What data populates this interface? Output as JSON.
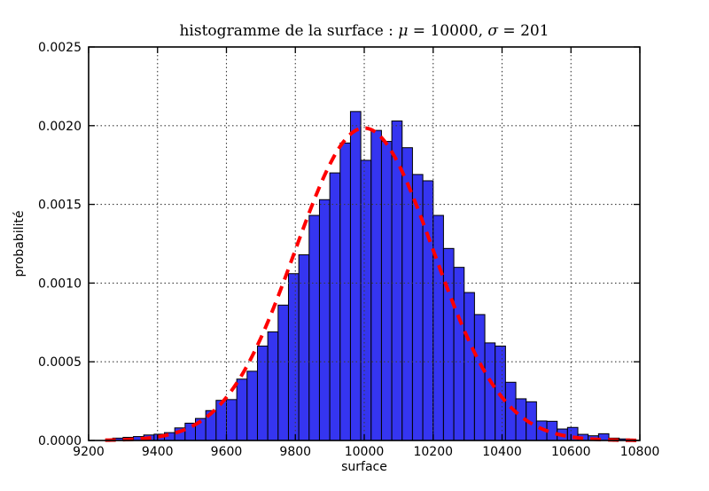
{
  "figure": {
    "title": "histogramme de la surface : μ = 10000, σ = 201"
  },
  "chart_data": {
    "type": "bar",
    "subtype": "histogram",
    "title": "histogramme de la surface : μ = 10000, σ = 201",
    "xlabel": "surface",
    "ylabel": "probabilité",
    "xlim": [
      9200,
      10800
    ],
    "ylim": [
      0.0,
      0.0025
    ],
    "x_ticks": [
      9200,
      9400,
      9600,
      9800,
      10000,
      10200,
      10400,
      10600,
      10800
    ],
    "x_tick_labels": [
      "9200",
      "9400",
      "9600",
      "9800",
      "10000",
      "10200",
      "10400",
      "10600",
      "10800"
    ],
    "y_ticks": [
      0.0,
      0.0005,
      0.001,
      0.0015,
      0.002,
      0.0025
    ],
    "y_tick_labels": [
      "0.0000",
      "0.0005",
      "0.0010",
      "0.0015",
      "0.0020",
      "0.0025"
    ],
    "grid": true,
    "grid_style": "dotted",
    "legend": null,
    "histogram": {
      "bin_start": 9270,
      "bin_width": 30,
      "densities": [
        1.5e-05,
        2e-05,
        2.5e-05,
        3.5e-05,
        4e-05,
        5e-05,
        8e-05,
        0.00011,
        0.00014,
        0.00019,
        0.000255,
        0.00026,
        0.00039,
        0.00044,
        0.0006,
        0.00069,
        0.00086,
        0.00106,
        0.00118,
        0.00143,
        0.00153,
        0.0017,
        0.00189,
        0.00209,
        0.00178,
        0.00197,
        0.0019,
        0.00203,
        0.00186,
        0.00169,
        0.00165,
        0.00143,
        0.00122,
        0.0011,
        0.00094,
        0.0008,
        0.00062,
        0.0006,
        0.00037,
        0.000265,
        0.000246,
        0.000124,
        0.000122,
        7.3e-05,
        8.3e-05,
        3.9e-05,
        3e-05,
        4.3e-05,
        1.5e-05,
        1e-05
      ]
    },
    "fit_curve": {
      "name": "gaussian-fit",
      "mu": 10000,
      "sigma": 201,
      "peak_density": 0.001985,
      "x_start": 9248,
      "x_end": 10790,
      "line_style": "dashed"
    },
    "colors": {
      "bar_fill": "#3535f0",
      "bar_edge": "#000000",
      "curve": "#ff0000",
      "grid": "#3c3c3c",
      "axis": "#000000",
      "text": "#000000",
      "background": "#ffffff"
    }
  }
}
